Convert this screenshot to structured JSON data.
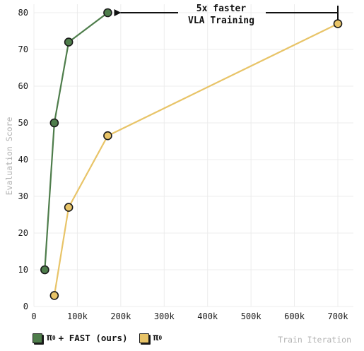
{
  "chart_data": {
    "type": "line",
    "xlabel": "Train Iteration",
    "ylabel": "Evaluation Score",
    "xlim": [
      0,
      700000
    ],
    "ylim": [
      0,
      80
    ],
    "x_ticks": [
      0,
      100000,
      200000,
      300000,
      400000,
      500000,
      600000,
      700000
    ],
    "x_tick_labels": [
      "0",
      "100k",
      "200k",
      "300k",
      "400k",
      "500k",
      "600k",
      "700k"
    ],
    "y_ticks": [
      0,
      10,
      20,
      30,
      40,
      50,
      60,
      70,
      80
    ],
    "y_tick_labels": [
      "0",
      "10",
      "20",
      "30",
      "40",
      "50",
      "60",
      "70",
      "80"
    ],
    "grid": true,
    "legend_position": "bottom-left",
    "annotation": {
      "line1": "5x faster",
      "line2": "VLA Training",
      "from_x": 700000,
      "to_x": 170000,
      "y": 80
    },
    "series": [
      {
        "name_main": "π",
        "name_sub": "0",
        "name_rest": "+ FAST (ours)",
        "color": "#4e7d4b",
        "x": [
          25000,
          47000,
          80000,
          170000
        ],
        "y": [
          10,
          50,
          72,
          80
        ]
      },
      {
        "name_main": "π",
        "name_sub": "0",
        "name_rest": "",
        "color": "#e8c468",
        "x": [
          47000,
          80000,
          170000,
          700000
        ],
        "y": [
          3,
          27,
          46.5,
          77
        ]
      }
    ]
  }
}
